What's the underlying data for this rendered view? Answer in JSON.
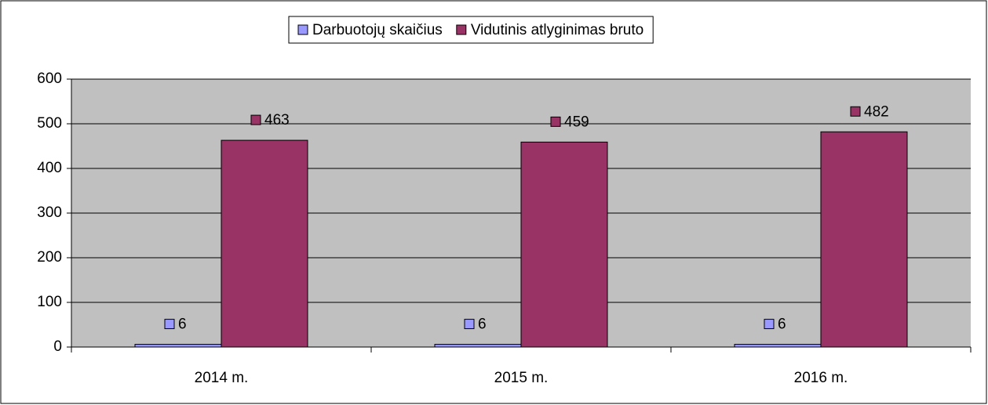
{
  "chart_data": {
    "type": "bar",
    "categories": [
      "2014 m.",
      "2015 m.",
      "2016 m."
    ],
    "series": [
      {
        "name": "Darbuotojų skaičius",
        "color": "#9999ff",
        "values": [
          6,
          6,
          6
        ]
      },
      {
        "name": "Vidutinis atlyginimas bruto",
        "color": "#993366",
        "values": [
          463,
          459,
          482
        ]
      }
    ],
    "ylim": [
      0,
      600
    ],
    "yticks": [
      0,
      100,
      200,
      300,
      400,
      500,
      600
    ],
    "grid": true,
    "legend": "top"
  }
}
